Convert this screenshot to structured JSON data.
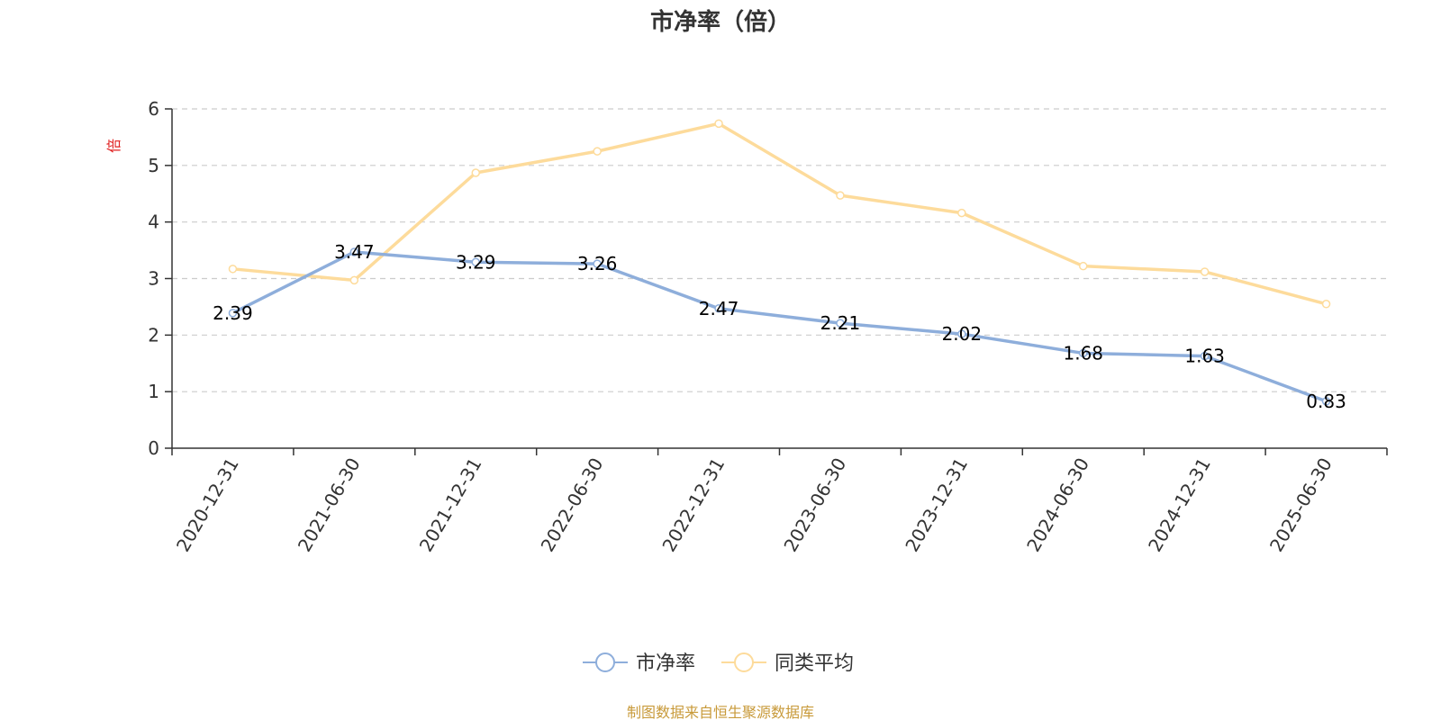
{
  "chart_data": {
    "type": "line",
    "title": "市净率（倍）",
    "ylabel": "倍",
    "xlabel": "",
    "ylim": [
      0,
      6
    ],
    "yticks": [
      0,
      1,
      2,
      3,
      4,
      5,
      6
    ],
    "grid": true,
    "legend_position": "bottom-center",
    "categories": [
      "2020-12-31",
      "2021-06-30",
      "2021-12-31",
      "2022-06-30",
      "2022-12-31",
      "2023-06-30",
      "2023-12-31",
      "2024-06-30",
      "2024-12-31",
      "2025-06-30"
    ],
    "series": [
      {
        "name": "市净率",
        "color": "#8eaedb",
        "values": [
          2.39,
          3.47,
          3.29,
          3.26,
          2.47,
          2.21,
          2.02,
          1.68,
          1.63,
          0.83
        ],
        "show_labels": true
      },
      {
        "name": "同类平均",
        "color": "#fddb9b",
        "values": [
          3.17,
          2.97,
          4.87,
          5.25,
          5.74,
          4.47,
          4.16,
          3.22,
          3.12,
          2.55
        ],
        "show_labels": false
      }
    ]
  },
  "source_note": "制图数据来自恒生聚源数据库",
  "colors": {
    "unit_label": "#e02020",
    "source_note": "#c89a3a",
    "axis": "#333333",
    "grid": "#cccccc"
  }
}
